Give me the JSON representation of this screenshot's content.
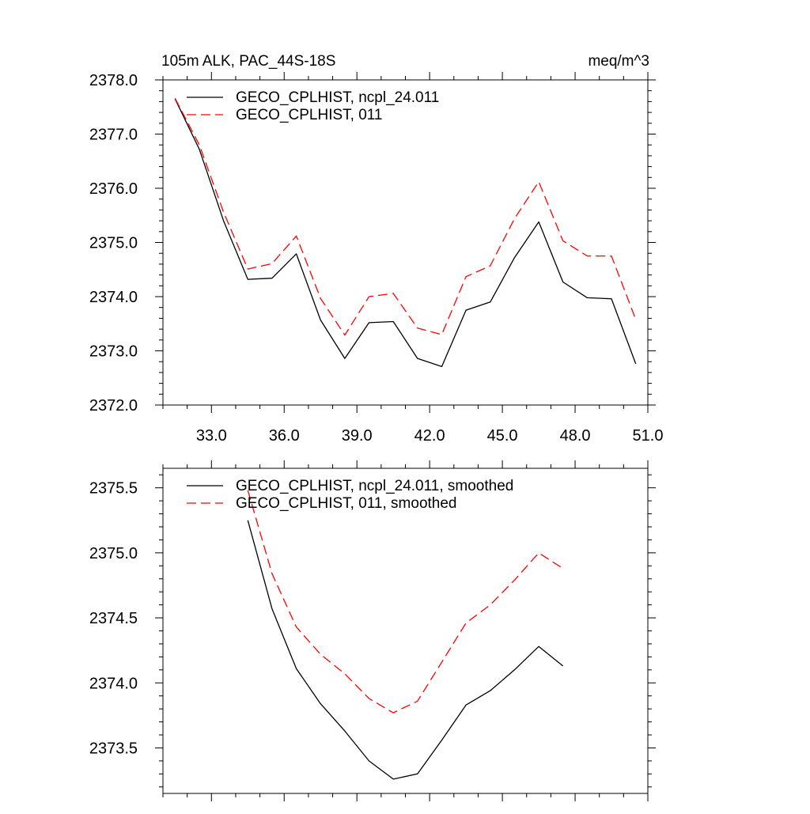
{
  "chart_data": [
    {
      "type": "line",
      "title": "105m ALK, PAC_44S-18S",
      "units": "meq/m^3",
      "xlabel": "",
      "ylabel": "",
      "xlim": [
        31.0,
        51.0
      ],
      "ylim": [
        2372.0,
        2378.0
      ],
      "xticks": [
        33.0,
        36.0,
        39.0,
        42.0,
        45.0,
        48.0,
        51.0
      ],
      "xtick_labels": [
        "33.0",
        "36.0",
        "39.0",
        "42.0",
        "45.0",
        "48.0",
        "51.0"
      ],
      "yticks": [
        2372.0,
        2373.0,
        2374.0,
        2375.0,
        2376.0,
        2377.0,
        2378.0
      ],
      "ytick_labels": [
        "2372.0",
        "2373.0",
        "2374.0",
        "2375.0",
        "2376.0",
        "2377.0",
        "2378.0"
      ],
      "legend_position": "top-left",
      "x": [
        31.5,
        32.5,
        33.5,
        34.5,
        35.5,
        36.5,
        37.5,
        38.5,
        39.5,
        40.5,
        41.5,
        42.5,
        43.5,
        44.5,
        45.5,
        46.5,
        47.5,
        48.5,
        49.5,
        50.5
      ],
      "series": [
        {
          "name": "GECO_CPLHIST, ncpl_24.011",
          "color": "#000000",
          "dash": "solid",
          "values": [
            2377.65,
            2376.72,
            2375.4,
            2374.32,
            2374.34,
            2374.79,
            2373.57,
            2372.86,
            2373.52,
            2373.54,
            2372.86,
            2372.71,
            2373.75,
            2373.9,
            2374.72,
            2375.38,
            2374.27,
            2373.98,
            2373.96,
            2372.76
          ]
        },
        {
          "name": "GECO_CPLHIST, 011",
          "color": "#ff0000",
          "dash": "dashed",
          "values": [
            2377.66,
            2376.8,
            2375.56,
            2374.51,
            2374.61,
            2375.12,
            2373.97,
            2373.29,
            2374.0,
            2374.06,
            2373.42,
            2373.3,
            2374.37,
            2374.57,
            2375.44,
            2376.12,
            2375.03,
            2374.75,
            2374.75,
            2373.58
          ]
        }
      ]
    },
    {
      "type": "line",
      "title": "",
      "xlabel": "",
      "ylabel": "",
      "xlim": [
        31.0,
        51.0
      ],
      "ylim": [
        2373.15,
        2375.65
      ],
      "xticks": [
        33.0,
        36.0,
        39.0,
        42.0,
        45.0,
        48.0,
        51.0
      ],
      "xtick_labels": [],
      "yticks": [
        2373.5,
        2374.0,
        2374.5,
        2375.0,
        2375.5
      ],
      "ytick_labels": [
        "2373.5",
        "2374.0",
        "2374.5",
        "2375.0",
        "2375.5"
      ],
      "legend_position": "top-left",
      "x": [
        34.5,
        35.5,
        36.5,
        37.5,
        38.5,
        39.5,
        40.5,
        41.5,
        42.5,
        43.5,
        44.5,
        45.5,
        46.5,
        47.5
      ],
      "series": [
        {
          "name": "GECO_CPLHIST, ncpl_24.011, smoothed",
          "color": "#000000",
          "dash": "solid",
          "values": [
            2375.25,
            2374.57,
            2374.11,
            2373.84,
            2373.63,
            2373.4,
            2373.26,
            2373.3,
            2373.56,
            2373.83,
            2373.94,
            2374.1,
            2374.28,
            2374.13
          ]
        },
        {
          "name": "GECO_CPLHIST, 011, smoothed",
          "color": "#ff0000",
          "dash": "dashed",
          "values": [
            2375.48,
            2374.84,
            2374.43,
            2374.22,
            2374.07,
            2373.88,
            2373.77,
            2373.86,
            2374.16,
            2374.46,
            2374.6,
            2374.79,
            2375.0,
            2374.88
          ]
        }
      ]
    }
  ]
}
